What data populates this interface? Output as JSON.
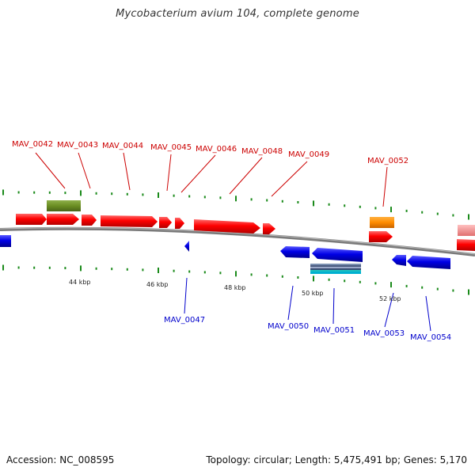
{
  "title": "Mycobacterium avium 104, complete genome",
  "footer": {
    "accession": "Accession: NC_008595",
    "summary": "Topology: circular; Length: 5,475,491 bp; Genes: 5,170"
  },
  "colors": {
    "forward_gene": "#ff0000",
    "reverse_gene": "#0000e6",
    "label_forward": "#cc0000",
    "label_reverse": "#0000cc",
    "backbone": "#8a8a8a",
    "tick": "#1a8a1a",
    "feature_olive": "#6b8e23",
    "feature_orange": "#ff8c00",
    "feature_teal": "#00c8c8",
    "faded_gene": "#f08080"
  },
  "ruler": [
    "44 kbp",
    "46 kbp",
    "48 kbp",
    "50 kbp",
    "52 kbp"
  ],
  "forward_labels": [
    "MAV_0042",
    "MAV_0043",
    "MAV_0044",
    "MAV_0045",
    "MAV_0046",
    "MAV_0048",
    "MAV_0049",
    "MAV_0052"
  ],
  "reverse_labels": [
    "MAV_0047",
    "MAV_0050",
    "MAV_0051",
    "MAV_0053",
    "MAV_0054"
  ]
}
